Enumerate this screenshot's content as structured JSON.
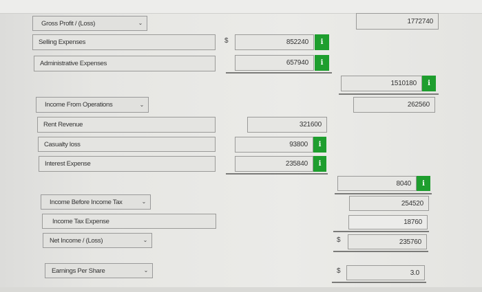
{
  "rows": {
    "gross_profit": {
      "label": "Gross Profit / (Loss)",
      "value": "1772740"
    },
    "selling_expenses": {
      "label": "Selling Expenses",
      "value": "852240"
    },
    "administrative_expenses": {
      "label": "Administrative Expenses",
      "value": "657940"
    },
    "total_operating_expenses": {
      "value": "1510180"
    },
    "income_from_operations": {
      "label": "Income From Operations",
      "value": "262560"
    },
    "rent_revenue": {
      "label": "Rent Revenue",
      "value": "321600"
    },
    "casualty_loss": {
      "label": "Casualty loss",
      "value": "93800"
    },
    "interest_expense": {
      "label": "Interest Expense",
      "value": "235840"
    },
    "other_total": {
      "value": "8040"
    },
    "income_before_tax": {
      "label": "Income Before Income Tax",
      "value": "254520"
    },
    "income_tax_expense": {
      "label": "Income Tax Expense",
      "value": "18760"
    },
    "net_income": {
      "label": "Net Income / (Loss)",
      "value": "235760"
    },
    "eps": {
      "label": "Earnings Per Share",
      "value": "3.0"
    }
  },
  "symbols": {
    "dollar": "$",
    "info": "i",
    "chevron": "⌄"
  },
  "colors": {
    "info_badge": "#1e9e2e"
  }
}
